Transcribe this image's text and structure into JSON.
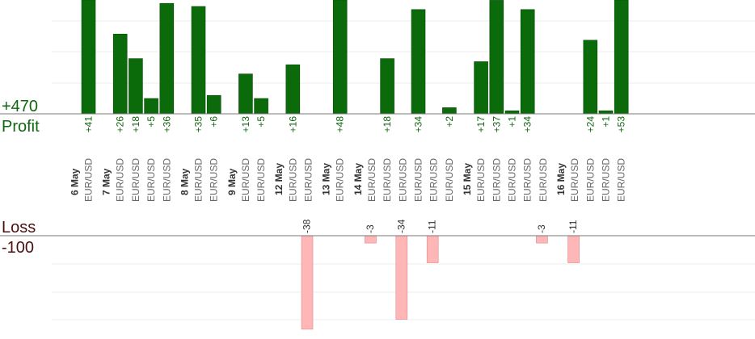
{
  "chart_data": {
    "type": "bar",
    "profit": {
      "label": "Profit",
      "scale_label": "+470",
      "color": "#0b6b0b",
      "text_color": "#116611"
    },
    "loss": {
      "label": "Loss",
      "scale_label": "-100",
      "color": "#ffb6b6",
      "text_color": "#4a1010"
    },
    "pair": "EUR/USD",
    "groups": [
      {
        "date": "6 May",
        "trades": [
          41
        ]
      },
      {
        "date": "7 May",
        "trades": [
          26,
          18,
          5,
          36
        ]
      },
      {
        "date": "8 May",
        "trades": [
          35,
          6
        ]
      },
      {
        "date": "9 May",
        "trades": [
          13,
          5
        ]
      },
      {
        "date": "12 May",
        "trades": [
          16,
          -38
        ]
      },
      {
        "date": "13 May",
        "trades": [
          48
        ]
      },
      {
        "date": "14 May",
        "trades": [
          -3,
          18,
          -34,
          34,
          -11,
          2
        ]
      },
      {
        "date": "15 May",
        "trades": [
          17,
          37,
          1,
          34,
          -3
        ]
      },
      {
        "date": "16 May",
        "trades": [
          -11,
          24,
          1,
          53
        ]
      }
    ]
  }
}
